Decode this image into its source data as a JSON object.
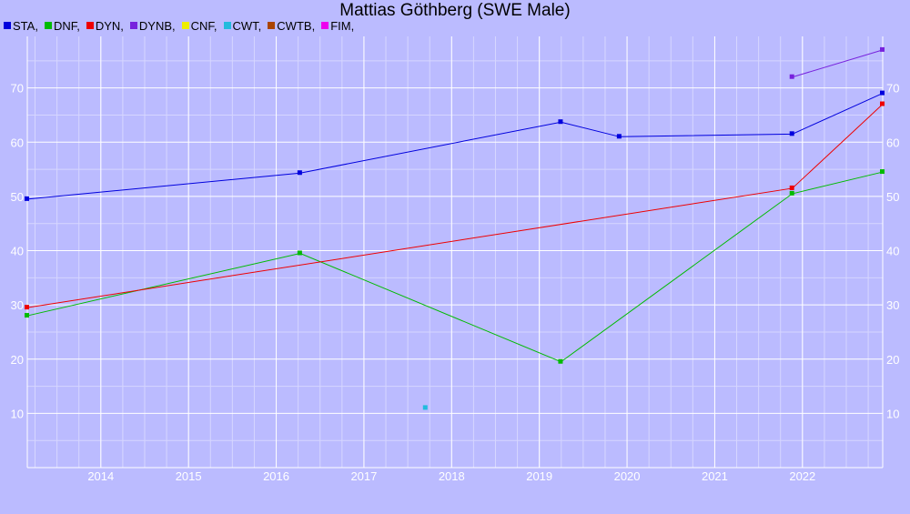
{
  "chart_data": {
    "type": "line",
    "title": "Mattias Göthberg (SWE Male)",
    "xlabel": "",
    "ylabel": "",
    "x_ticks": [
      "2014",
      "2015",
      "2016",
      "2017",
      "2018",
      "2019",
      "2020",
      "2021",
      "2022"
    ],
    "y_ticks": [
      10,
      20,
      30,
      40,
      50,
      60,
      70
    ],
    "xlim": [
      "2013-03-01",
      "2022-12-01"
    ],
    "ylim": [
      0,
      79.5
    ],
    "grid": true,
    "legend": "top-left",
    "series": [
      {
        "name": "STA",
        "color": "#0000dd",
        "points": [
          [
            "2013-03-01",
            49.5
          ],
          [
            "2016-04-10",
            54.3
          ],
          [
            "2019-04-01",
            63.7
          ],
          [
            "2019-12-01",
            61.0
          ],
          [
            "2021-11-20",
            61.5
          ],
          [
            "2022-12-01",
            69.0
          ]
        ]
      },
      {
        "name": "DNF",
        "color": "#00bb00",
        "points": [
          [
            "2013-03-01",
            28.0
          ],
          [
            "2016-04-10",
            39.5
          ],
          [
            "2019-04-01",
            19.5
          ],
          [
            "2021-11-20",
            50.5
          ],
          [
            "2022-12-01",
            54.5
          ]
        ]
      },
      {
        "name": "DYN",
        "color": "#ee0000",
        "points": [
          [
            "2013-03-01",
            29.5
          ],
          [
            "2021-11-20",
            51.5
          ],
          [
            "2022-12-01",
            67.0
          ]
        ]
      },
      {
        "name": "DYNB",
        "color": "#7722dd",
        "points": [
          [
            "2021-11-20",
            72.0
          ],
          [
            "2022-12-01",
            77.0
          ]
        ]
      },
      {
        "name": "CNF",
        "color": "#eeee00",
        "points": []
      },
      {
        "name": "CWT",
        "color": "#22bbdd",
        "points": [
          [
            "2017-09-15",
            11.0
          ]
        ]
      },
      {
        "name": "CWTB",
        "color": "#aa4400",
        "points": []
      },
      {
        "name": "FIM",
        "color": "#ee00ee",
        "points": []
      }
    ],
    "legend_labels": [
      "STA,",
      "DNF,",
      "DYN,",
      "DYNB,",
      "CNF,",
      "CWT,",
      "CWTB,",
      "FIM,"
    ]
  }
}
